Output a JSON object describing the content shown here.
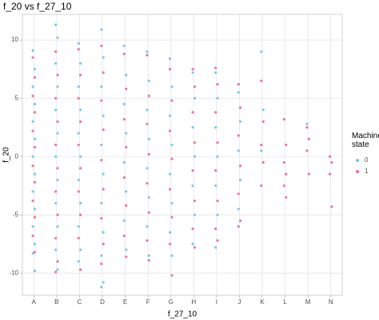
{
  "chart_data": {
    "type": "strip",
    "title": "f_20 vs f_27_10",
    "x_label": "f_27_10",
    "y_label": "f_20",
    "legend_title": "Machine state",
    "grid": true,
    "categories": [
      "A",
      "B",
      "C",
      "D",
      "E",
      "F",
      "G",
      "H",
      "I",
      "J",
      "K",
      "L",
      "M",
      "N"
    ],
    "ylim": [
      -11.9,
      12.2
    ],
    "yticks": [
      -10,
      -5,
      0,
      5,
      10
    ],
    "series": [
      {
        "name": "0",
        "color": "#56b4e9",
        "values": [
          [
            9.1,
            7.5,
            6,
            4.5,
            3,
            1.5,
            0,
            -1.5,
            -3,
            -4.5,
            -6,
            -7.5,
            -8.3,
            -9.8
          ],
          [
            11.3,
            10.2,
            8,
            6,
            4,
            2,
            0,
            -2,
            -4,
            -6,
            -8,
            -9.7
          ],
          [
            9.7,
            8,
            6,
            4,
            2,
            0,
            -2,
            -4,
            -6,
            -8,
            -9
          ],
          [
            10.9,
            8.5,
            6,
            3.5,
            1,
            -1.5,
            -4,
            -6.5,
            -8.5,
            -10.8,
            -11.2
          ],
          [
            9.5,
            7,
            4.5,
            2,
            -0.5,
            -3,
            -5.5,
            -8
          ],
          [
            9,
            6.5,
            4,
            1.5,
            -1,
            -3.5,
            -6,
            -8.5
          ],
          [
            8.4,
            6,
            3.5,
            1,
            -1.5,
            -4,
            -6.5,
            -8.5
          ],
          [
            7.2,
            5,
            2.5,
            0,
            -2.5,
            -5,
            -7.5
          ],
          [
            7.2,
            5,
            2.5,
            0,
            -2.5,
            -5,
            -7.8
          ],
          [
            5.5,
            3,
            0.5,
            -2,
            -4.5
          ],
          [
            9,
            4,
            0.5
          ],
          [],
          [
            2.8
          ],
          []
        ]
      },
      {
        "name": "1",
        "color": "#e7487f",
        "values": [
          [
            8.5,
            6.8,
            5.2,
            3.8,
            2.2,
            0.8,
            -0.8,
            -2.2,
            -3.8,
            -5.2,
            -6.8,
            -8.2
          ],
          [
            9,
            7,
            5,
            3,
            1,
            -1,
            -3,
            -5,
            -7,
            -9,
            -9.9
          ],
          [
            9.2,
            7,
            5,
            3,
            1,
            -1,
            -3,
            -5,
            -7,
            -9.7
          ],
          [
            9.5,
            7.2,
            4.8,
            2.3,
            -0.3,
            -2.8,
            -5.3,
            -7.5,
            -9.2
          ],
          [
            8.8,
            5.8,
            3.2,
            0.8,
            -1.8,
            -4.2,
            -6.8,
            -8.6
          ],
          [
            8.7,
            5.2,
            2.8,
            0.2,
            -2.3,
            -4.8,
            -7.2,
            -8.9
          ],
          [
            7.5,
            4.8,
            2.2,
            -0.2,
            -2.8,
            -5.2,
            -7.5,
            -10.2
          ],
          [
            7.5,
            6,
            3.8,
            1.2,
            -1.2,
            -3.8,
            -6.2,
            -7.8
          ],
          [
            7.6,
            6.2,
            3.8,
            1.2,
            -1.2,
            -3.8,
            -6.2,
            -7.2
          ],
          [
            6.2,
            4.2,
            1.8,
            -0.8,
            -3.2,
            -5.5,
            -6
          ],
          [
            6.5,
            3,
            1,
            -0.5,
            -2.5
          ],
          [
            3.2,
            1,
            -0.5,
            -1.5,
            -2.5,
            -3.5
          ],
          [
            2.5,
            1.5,
            0.5,
            -1.5
          ],
          [
            0,
            -0.5,
            -1.5,
            -4.3
          ]
        ]
      }
    ]
  }
}
